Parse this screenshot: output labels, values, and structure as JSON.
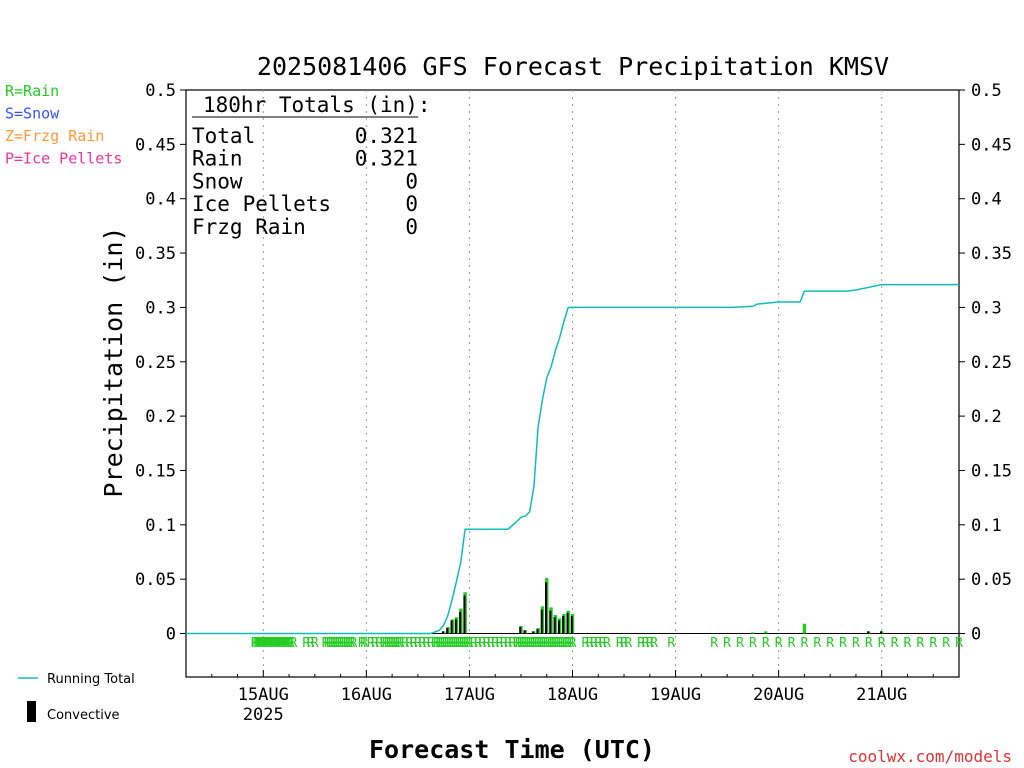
{
  "chart_data": {
    "type": "bar",
    "title": "2025081406 GFS Forecast Precipitation KMSV",
    "ylabel": "Precipitation (in)",
    "xlabel": "Forecast Time (UTC)",
    "ylim": [
      -0.04,
      0.5
    ],
    "y_ticks": [
      "0",
      "0.05",
      "0.1",
      "0.15",
      "0.2",
      "0.25",
      "0.3",
      "0.35",
      "0.4",
      "0.45",
      "0.5"
    ],
    "x_range_hours": [
      0,
      180
    ],
    "x_ticks": [
      {
        "hour": 18,
        "label": "15AUG",
        "sublabel": "2025"
      },
      {
        "hour": 42,
        "label": "16AUG"
      },
      {
        "hour": 66,
        "label": "17AUG"
      },
      {
        "hour": 90,
        "label": "18AUG"
      },
      {
        "hour": 114,
        "label": "19AUG"
      },
      {
        "hour": 138,
        "label": "20AUG"
      },
      {
        "hour": 162,
        "label": "21AUG"
      }
    ],
    "grid": "vertical dotted at day boundaries",
    "legend_types": [
      {
        "label": "R=Rain",
        "color": "#22cc22"
      },
      {
        "label": "S=Snow",
        "color": "#3355ff"
      },
      {
        "label": "Z=Frzg Rain",
        "color": "#ff9933"
      },
      {
        "label": "P=Ice Pellets",
        "color": "#ee3399"
      }
    ],
    "legend_series": [
      {
        "label": "Running Total",
        "color": "#11bbbb"
      },
      {
        "label": "Convective",
        "color": "#000000"
      }
    ],
    "totals": {
      "header": "180hr Totals (in):",
      "rows": [
        {
          "label": "Total",
          "value": "0.321"
        },
        {
          "label": "Rain",
          "value": "0.321"
        },
        {
          "label": "Snow",
          "value": "0"
        },
        {
          "label": "Ice Pellets",
          "value": "0"
        },
        {
          "label": "Frzg Rain",
          "value": "0"
        }
      ]
    },
    "precip_bars": [
      {
        "hour": 60,
        "total": 0.002,
        "convective": 0.002
      },
      {
        "hour": 61,
        "total": 0.006,
        "convective": 0.005
      },
      {
        "hour": 62,
        "total": 0.013,
        "convective": 0.012
      },
      {
        "hour": 63,
        "total": 0.015,
        "convective": 0.013
      },
      {
        "hour": 64,
        "total": 0.023,
        "convective": 0.02
      },
      {
        "hour": 65,
        "total": 0.038,
        "convective": 0.035
      },
      {
        "hour": 78,
        "total": 0.007,
        "convective": 0.006
      },
      {
        "hour": 79,
        "total": 0.003,
        "convective": 0.003
      },
      {
        "hour": 81,
        "total": 0.002,
        "convective": 0.002
      },
      {
        "hour": 82,
        "total": 0.005,
        "convective": 0.004
      },
      {
        "hour": 83,
        "total": 0.025,
        "convective": 0.022
      },
      {
        "hour": 84,
        "total": 0.051,
        "convective": 0.047
      },
      {
        "hour": 85,
        "total": 0.024,
        "convective": 0.021
      },
      {
        "hour": 86,
        "total": 0.017,
        "convective": 0.015
      },
      {
        "hour": 87,
        "total": 0.014,
        "convective": 0.012
      },
      {
        "hour": 88,
        "total": 0.018,
        "convective": 0.016
      },
      {
        "hour": 89,
        "total": 0.021,
        "convective": 0.019
      },
      {
        "hour": 90,
        "total": 0.018,
        "convective": 0.016
      },
      {
        "hour": 132,
        "total": 0.001,
        "convective": 0
      },
      {
        "hour": 135,
        "total": 0.002,
        "convective": 0
      },
      {
        "hour": 144,
        "total": 0.009,
        "convective": 0
      },
      {
        "hour": 159,
        "total": 0.002,
        "convective": 0.002
      },
      {
        "hour": 162,
        "total": 0.002,
        "convective": 0.002
      }
    ],
    "running_total": {
      "hours": [
        0,
        57,
        59,
        60,
        61,
        62,
        63,
        64,
        65,
        66,
        75,
        77,
        78,
        79,
        80,
        81,
        82,
        83,
        84,
        85,
        86,
        87,
        88,
        89,
        90,
        126,
        127,
        132,
        133,
        138,
        143,
        144,
        154,
        156,
        162,
        180
      ],
      "values": [
        0,
        0,
        0.003,
        0.008,
        0.017,
        0.032,
        0.048,
        0.066,
        0.096,
        0.096,
        0.096,
        0.103,
        0.107,
        0.108,
        0.112,
        0.135,
        0.19,
        0.215,
        0.235,
        0.245,
        0.26,
        0.272,
        0.287,
        0.3,
        0.3,
        0.3,
        0.3,
        0.301,
        0.303,
        0.305,
        0.305,
        0.315,
        0.315,
        0.316,
        0.321,
        0.321
      ]
    },
    "type_markers": {
      "letter": "R",
      "hours": [
        16,
        16.4,
        16.8,
        17.2,
        17.6,
        18,
        18.4,
        18.8,
        19.2,
        19.6,
        20,
        20.4,
        20.8,
        21.2,
        21.6,
        22,
        22.4,
        22.8,
        23.2,
        23.6,
        24,
        24.4,
        25,
        28,
        29,
        30,
        32.5,
        33,
        33.5,
        34,
        34.5,
        35,
        35.5,
        36,
        36.5,
        37,
        37.5,
        38,
        38.5,
        39,
        41,
        41.5,
        43,
        44,
        45,
        46,
        46.5,
        47,
        47.5,
        48,
        48.5,
        49,
        49.5,
        50,
        51,
        52,
        53,
        54,
        55,
        56,
        57,
        58,
        58.5,
        59,
        59.5,
        60,
        60.5,
        61,
        61.5,
        62,
        62.5,
        63,
        63.5,
        64,
        64.5,
        65,
        65.5,
        66,
        67,
        68,
        69,
        70,
        71,
        72,
        73,
        74,
        75,
        76,
        77,
        77.5,
        78,
        78.5,
        79,
        79.5,
        80,
        80.5,
        81,
        81.5,
        82,
        82.5,
        83,
        83.5,
        84,
        84.5,
        85,
        85.5,
        86,
        86.5,
        87,
        87.5,
        88,
        88.5,
        89,
        89.5,
        90,
        93,
        94,
        95,
        96,
        97,
        98,
        101,
        102,
        103,
        106,
        107,
        108,
        109,
        113,
        123,
        126,
        129,
        132,
        135,
        138,
        141,
        144,
        147,
        150,
        153,
        156,
        159,
        162,
        165,
        168,
        171,
        174,
        177,
        180
      ]
    }
  },
  "credit": "coolwx.com/models",
  "colors": {
    "rain": "#22cc22",
    "running_total": "#11bbbb",
    "convective": "#000000",
    "credit": "#dd3333"
  }
}
